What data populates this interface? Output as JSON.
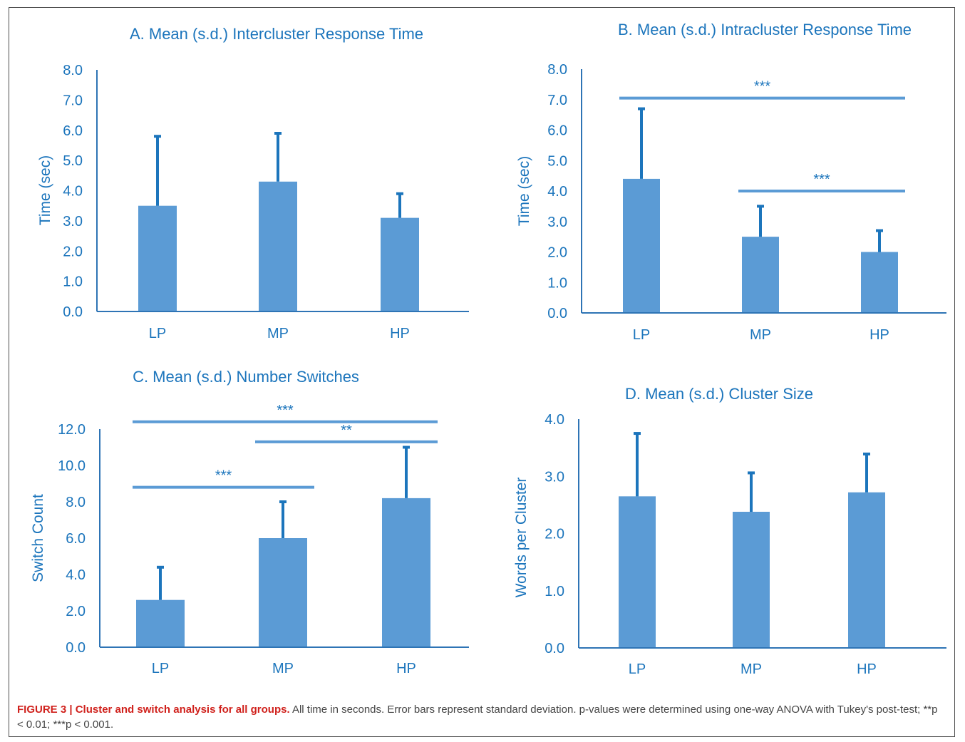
{
  "caption": {
    "label": "FIGURE 3 | Cluster and switch analysis for all groups.",
    "text": "All time in seconds. Error bars represent standard deviation. p-values were determined using one-way ANOVA with Tukey's post-test; **p < 0.01; ***p < 0.001."
  },
  "colors": {
    "bar": "#5b9bd5",
    "axis_text": "#1c75bc",
    "axis_line": "#2e74b5",
    "error_bar": "#1c75bc"
  },
  "chart_data": [
    {
      "id": "A",
      "type": "bar",
      "title": "A. Mean (s.d.) Intercluster Response Time",
      "ylabel": "Time (sec)",
      "xlabel": "",
      "categories": [
        "LP",
        "MP",
        "HP"
      ],
      "values": [
        3.5,
        4.3,
        3.1
      ],
      "error": [
        2.3,
        1.6,
        0.8
      ],
      "ylim": [
        0,
        8
      ],
      "yticks": [
        "0.0",
        "1.0",
        "2.0",
        "3.0",
        "4.0",
        "5.0",
        "6.0",
        "7.0",
        "8.0"
      ],
      "significance": []
    },
    {
      "id": "B",
      "type": "bar",
      "title": "B. Mean (s.d.) Intracluster Response Time",
      "ylabel": "Time (sec)",
      "xlabel": "",
      "categories": [
        "LP",
        "MP",
        "HP"
      ],
      "values": [
        4.4,
        2.5,
        2.0
      ],
      "error": [
        2.3,
        1.0,
        0.7
      ],
      "ylim": [
        0,
        8
      ],
      "yticks": [
        "0.0",
        "1.0",
        "2.0",
        "3.0",
        "4.0",
        "5.0",
        "6.0",
        "7.0",
        "8.0"
      ],
      "significance": [
        {
          "from": "LP",
          "to": "HP",
          "label": "***",
          "level": 7.05
        },
        {
          "from": "MP",
          "to": "HP",
          "label": "***",
          "level": 4.0
        }
      ]
    },
    {
      "id": "C",
      "type": "bar",
      "title": "C. Mean (s.d.) Number Switches",
      "ylabel": "Switch Count",
      "xlabel": "",
      "categories": [
        "LP",
        "MP",
        "HP"
      ],
      "values": [
        2.6,
        6.0,
        8.2
      ],
      "error": [
        1.8,
        2.0,
        2.8
      ],
      "ylim": [
        0,
        12
      ],
      "yticks": [
        "0.0",
        "2.0",
        "4.0",
        "6.0",
        "8.0",
        "10.0",
        "12.0"
      ],
      "significance": [
        {
          "from": "LP",
          "to": "HP",
          "label": "***",
          "level": 12.4
        },
        {
          "from": "MP",
          "to": "HP",
          "label": "**",
          "level": 11.3
        },
        {
          "from": "LP",
          "to": "MP",
          "label": "***",
          "level": 8.8
        }
      ]
    },
    {
      "id": "D",
      "type": "bar",
      "title": "D. Mean (s.d.) Cluster Size",
      "ylabel": "Words per Cluster",
      "xlabel": "",
      "categories": [
        "LP",
        "MP",
        "HP"
      ],
      "values": [
        2.65,
        2.38,
        2.72
      ],
      "error": [
        1.1,
        0.68,
        0.67
      ],
      "ylim": [
        0,
        4
      ],
      "yticks": [
        "0.0",
        "1.0",
        "2.0",
        "3.0",
        "4.0"
      ],
      "significance": []
    }
  ]
}
